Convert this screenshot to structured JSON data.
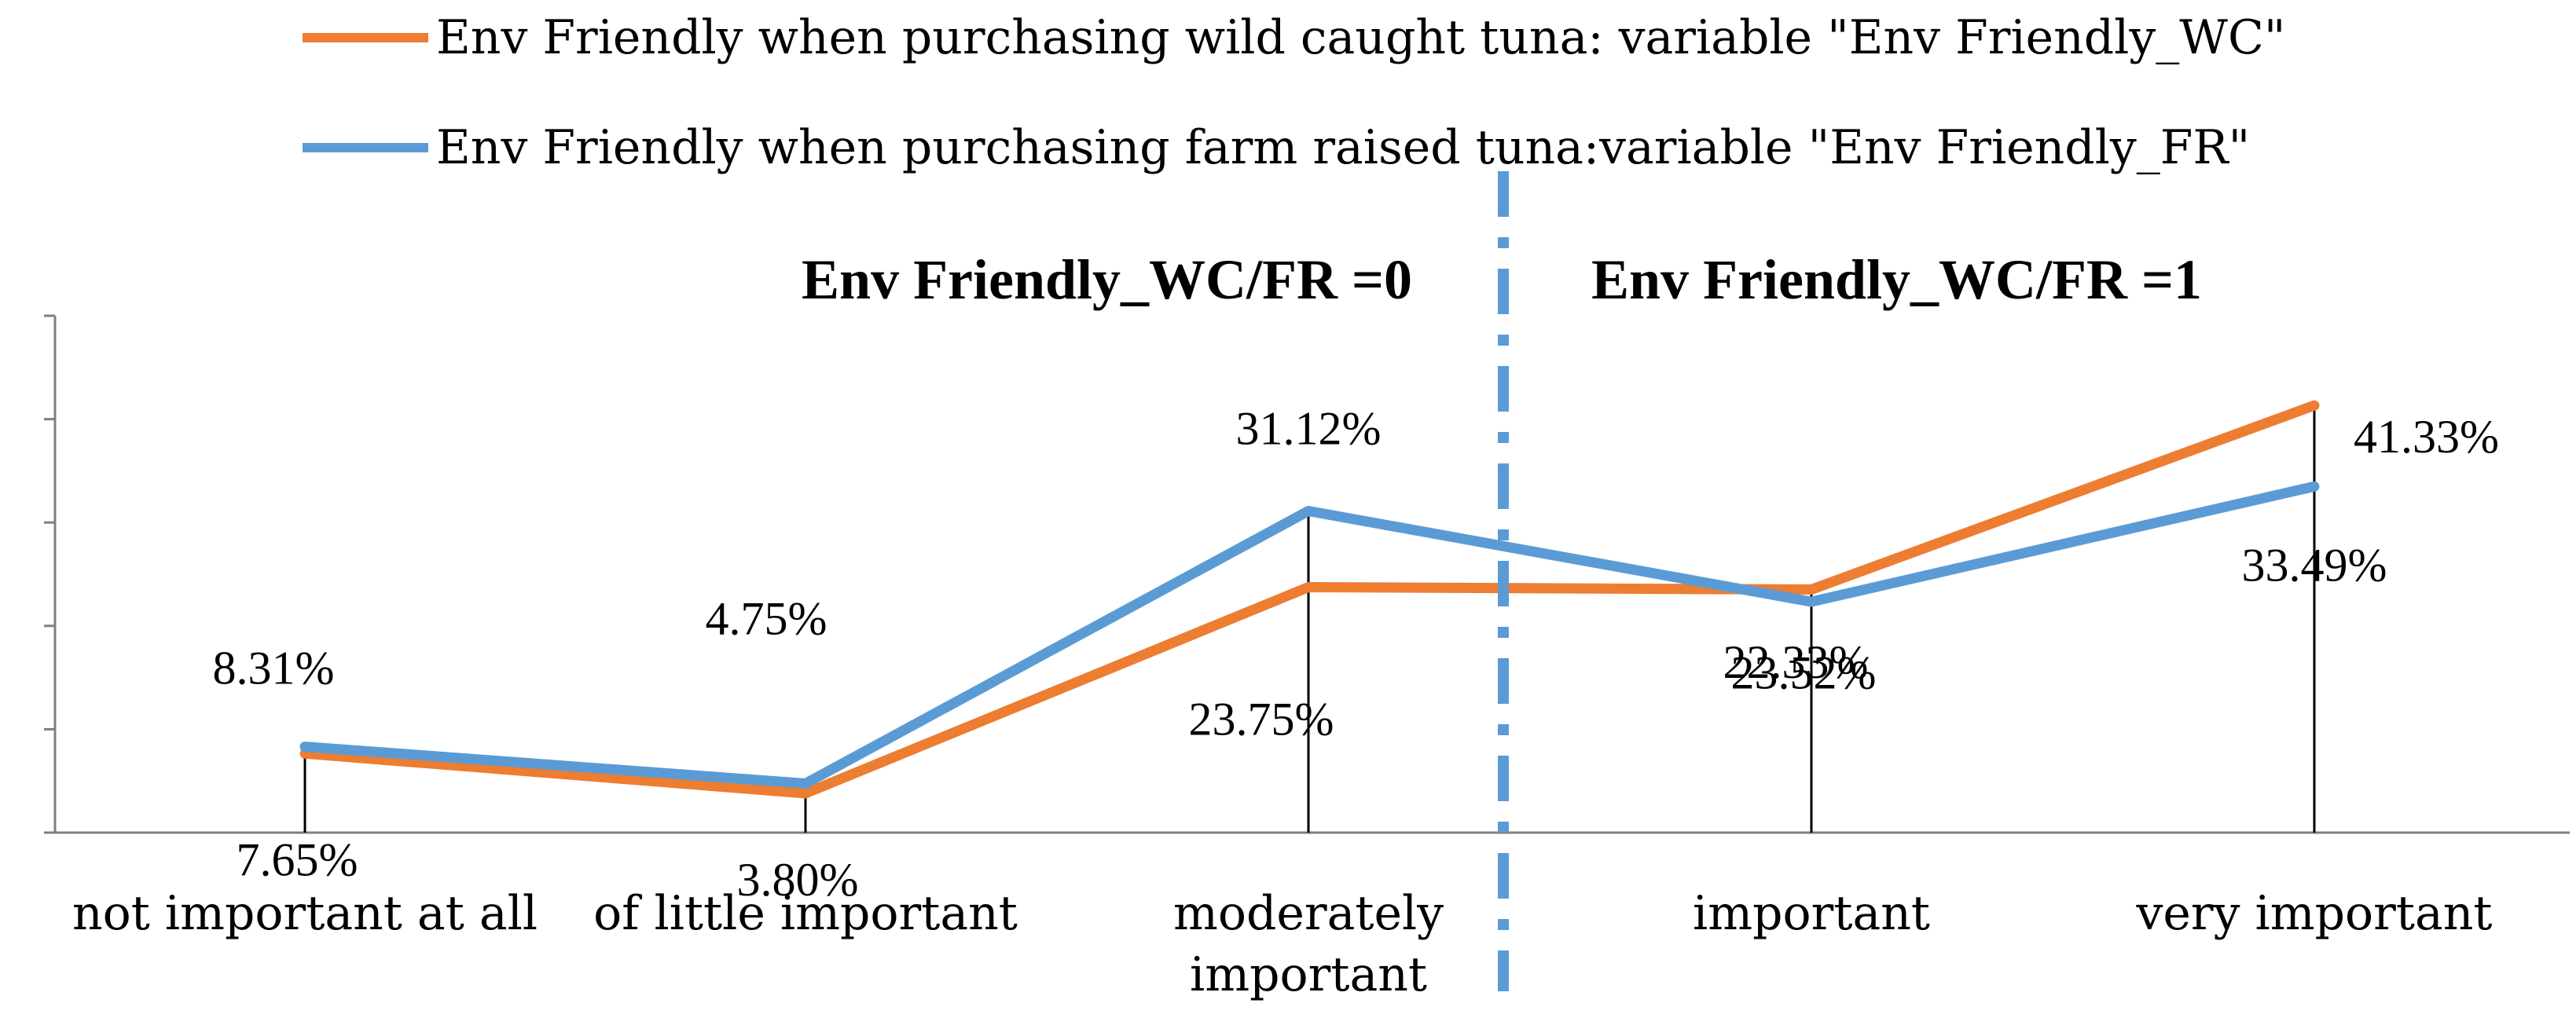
{
  "chart_data": {
    "type": "line",
    "categories": [
      "not important at all",
      "of little important",
      "moderately important",
      "important",
      "very important"
    ],
    "series": [
      {
        "name": "Env Friendly when purchasing wild caught tuna: variable \"Env Friendly_WC\"",
        "color": "#ED7D31",
        "values": [
          7.65,
          3.8,
          23.75,
          23.52,
          41.33
        ],
        "labels": [
          "7.65%",
          "3.80%",
          "23.75%",
          "23.52%",
          "41.33%"
        ]
      },
      {
        "name": "Env Friendly when purchasing farm raised tuna:variable \"Env Friendly_FR\"",
        "color": "#5B9BD5",
        "values": [
          8.31,
          4.75,
          31.12,
          22.33,
          33.49
        ],
        "labels": [
          "8.31%",
          "4.75%",
          "31.12%",
          "22.33%",
          "33.49%"
        ]
      }
    ],
    "ylim": [
      0,
      50
    ],
    "grid": false,
    "legend_position": "top",
    "annotations": {
      "left_group": "Env Friendly_WC/FR =0",
      "right_group": "Env Friendly_WC/FR =1"
    },
    "divider_color": "#5B9BD5"
  }
}
